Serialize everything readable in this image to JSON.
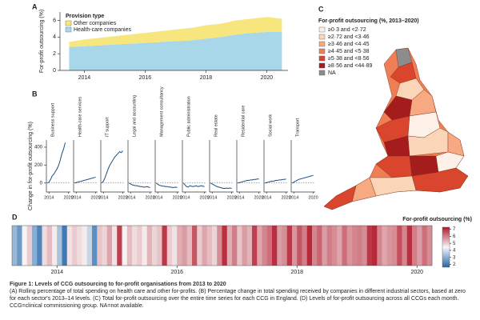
{
  "chart_data": [
    {
      "panel": "A",
      "type": "area",
      "stacked": true,
      "ylabel": "For-profit outsourcing (%)",
      "legend_title": "Provision type",
      "x": [
        2013.5,
        2014,
        2014.5,
        2015,
        2015.5,
        2016,
        2016.5,
        2017,
        2017.5,
        2018,
        2018.5,
        2019,
        2019.5,
        2020,
        2020.5
      ],
      "series": [
        {
          "name": "Health-care companies",
          "color": "#a9d7ea",
          "values": [
            2.8,
            2.9,
            3.0,
            3.1,
            3.2,
            3.3,
            3.4,
            3.5,
            3.6,
            3.8,
            4.0,
            4.3,
            4.5,
            4.6,
            4.6
          ]
        },
        {
          "name": "Other companies",
          "color": "#f7e57e",
          "values": [
            0.6,
            0.8,
            0.9,
            1.0,
            1.1,
            1.2,
            1.3,
            1.4,
            1.5,
            1.6,
            1.6,
            1.7,
            1.7,
            1.8,
            1.6
          ]
        }
      ],
      "xlim": [
        2013.2,
        2020.7
      ],
      "ylim": [
        0,
        7
      ],
      "xticks": [
        2014,
        2016,
        2018,
        2020
      ],
      "yticks": [
        0,
        2,
        4,
        6
      ]
    },
    {
      "panel": "B",
      "type": "line",
      "ylabel": "Change in for-profit outsourcing (%)",
      "color": "#1f4e79",
      "x": [
        2013.5,
        2014,
        2014.5,
        2015,
        2015.5,
        2016,
        2016.5,
        2017,
        2017.5,
        2018,
        2018.5,
        2019,
        2019.5,
        2020
      ],
      "panels": [
        {
          "title": "Business support",
          "values": [
            0,
            10,
            40,
            80,
            100,
            130,
            160,
            200,
            260,
            330,
            380,
            450,
            null,
            null
          ]
        },
        {
          "title": "Health-care services",
          "values": [
            0,
            5,
            10,
            15,
            20,
            25,
            30,
            35,
            40,
            45,
            50,
            55,
            60,
            65
          ]
        },
        {
          "title": "IT support",
          "values": [
            0,
            20,
            60,
            110,
            160,
            200,
            230,
            260,
            290,
            310,
            330,
            350,
            340,
            360
          ]
        },
        {
          "title": "Legal and accounting",
          "values": [
            0,
            -10,
            -20,
            -25,
            -30,
            -30,
            -35,
            -40,
            -40,
            -45,
            -45,
            -40,
            -45,
            -50
          ]
        },
        {
          "title": "Management consultancy",
          "values": [
            0,
            -15,
            -25,
            -30,
            -35,
            -35,
            -40,
            -40,
            -45,
            -45,
            -50,
            -50,
            -45,
            -50
          ]
        },
        {
          "title": "Public administration",
          "values": [
            0,
            -20,
            -40,
            -45,
            -30,
            -35,
            -40,
            -35,
            -30,
            -40,
            -35,
            -30,
            -35,
            -40
          ]
        },
        {
          "title": "Real estate",
          "values": [
            0,
            -10,
            -20,
            -30,
            -40,
            -45,
            -50,
            -55,
            -60,
            -60,
            -55,
            -60,
            -55,
            -60
          ]
        },
        {
          "title": "Residential care",
          "values": [
            0,
            5,
            10,
            15,
            20,
            25,
            30,
            30,
            35,
            35,
            40,
            40,
            45,
            45
          ]
        },
        {
          "title": "Social work",
          "values": [
            0,
            5,
            10,
            15,
            20,
            20,
            25,
            30,
            30,
            35,
            35,
            40,
            40,
            45
          ]
        },
        {
          "title": "Transport",
          "values": [
            0,
            10,
            20,
            30,
            40,
            45,
            50,
            55,
            60,
            65,
            70,
            75,
            80,
            85
          ]
        }
      ],
      "xlim": [
        2013.2,
        2020.6
      ],
      "ylim": [
        -100,
        480
      ],
      "xticks": [
        2014,
        2020
      ],
      "yticks": [
        0,
        200,
        400
      ]
    },
    {
      "panel": "C",
      "type": "map",
      "legend_title": "For-profit outsourcing (%, 2013–2020)",
      "legend": [
        {
          "label": "≥0·3 and <2·72",
          "color": "#fdf0e6"
        },
        {
          "label": "≥2·72 and <3·46",
          "color": "#fbd5b8"
        },
        {
          "label": "≥3·46 and <4·45",
          "color": "#f7a982"
        },
        {
          "label": "≥4·45 and <5·38",
          "color": "#ef7e55"
        },
        {
          "label": "≥5·38 and <8·56",
          "color": "#d9452d"
        },
        {
          "label": "≥8·56 and <44·89",
          "color": "#a51c1c"
        },
        {
          "label": "NA",
          "color": "#8c8c8c"
        }
      ]
    },
    {
      "panel": "D",
      "type": "heatmap",
      "colorbar_label": "For-profit outsourcing (%)",
      "colors": [
        "#2166ac",
        "#f7f7f7",
        "#b2182b"
      ],
      "zlim": [
        1.6,
        7.3
      ],
      "zticks": [
        2,
        3,
        4,
        5,
        6,
        7
      ],
      "xlim": [
        2013.25,
        2020.25
      ],
      "xticks": [
        2014,
        2016,
        2018,
        2020
      ],
      "values": [
        3.2,
        2.6,
        4.5,
        5.0,
        3.0,
        2.2,
        4.8,
        5.2,
        4.6,
        3.4,
        2.0,
        4.7,
        5.0,
        4.8,
        4.6,
        3.8,
        2.4,
        5.1,
        4.9,
        5.5,
        4.7,
        6.8,
        4.5,
        5.2,
        4.8,
        5.0,
        4.6,
        5.3,
        4.9,
        5.1,
        6.9,
        5.0,
        4.7,
        5.4,
        5.6,
        5.2,
        6.5,
        5.0,
        5.5,
        5.2,
        4.9,
        5.8,
        7.0,
        5.4,
        6.0,
        5.1,
        5.6,
        5.3,
        6.8,
        5.5,
        5.9,
        6.2,
        7.0,
        5.6,
        5.8,
        6.9,
        5.7,
        6.5,
        6.0,
        7.1,
        5.9,
        6.3,
        5.6,
        6.0,
        5.8,
        5.5,
        6.2,
        5.7,
        5.9,
        6.0,
        5.8,
        6.9,
        7.1,
        5.9,
        5.5,
        5.7,
        5.8,
        6.6,
        5.9,
        7.0,
        6.0,
        5.6,
        6.2,
        5.8
      ]
    }
  ],
  "caption": {
    "title": "Figure 1: Levels of CCG outsourcing to for-profit organisations from 2013 to 2020",
    "text": "(A) Rolling percentage of total spending on health care and other for-profits. (B) Percentage change in total spending received by companies in different industrial sectors, based at zero for each sector's 2013–14 levels. (C) Total for-profit outsourcing over the entire time series for each CCG in England. (D) Levels of for-profit outsourcing across all CCGs each month. CCG=clinical commissioning group. NA=not available."
  }
}
